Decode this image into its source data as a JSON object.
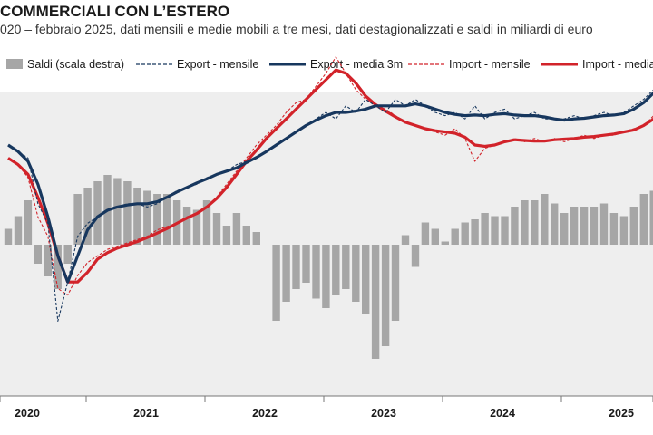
{
  "header": {
    "title": "COMMERCIALI CON L’ESTERO",
    "subtitle": "020 – febbraio 2025, dati mensili e medie mobili a tre mesi, dati destagionalizzati e saldi in miliardi di euro"
  },
  "colors": {
    "export": "#17375e",
    "import": "#d2232a",
    "saldi": "#a6a6a6",
    "plot_bg": "#eeeeee"
  },
  "chart_data": {
    "type": "line",
    "x_start": "2019-10",
    "x_ticks": [
      "2020",
      "2021",
      "2022",
      "2023",
      "2024",
      "2025"
    ],
    "legend": [
      "Saldi (scala destra)",
      "Export - mensile",
      "Export - media 3m",
      "Import - mensile",
      "Import - media"
    ],
    "legend_position": "top",
    "grid": false,
    "y_left_range": [
      25,
      70
    ],
    "y_right_range": [
      -20,
      15
    ],
    "saldi": [
      2.5,
      4.5,
      7,
      -3,
      -5,
      -7,
      -3,
      8,
      9,
      10,
      11,
      10.5,
      10,
      9,
      8.5,
      8,
      8,
      7,
      6,
      5.5,
      7,
      5,
      3,
      5,
      3,
      2,
      0,
      -12,
      -9,
      -7,
      -6,
      -8.5,
      -10,
      -8,
      -7,
      -9,
      -11,
      -18,
      -16,
      -12,
      1.5,
      -3.5,
      3.5,
      2.5,
      0.5,
      2.5,
      3.5,
      4,
      5,
      4.5,
      4.5,
      6,
      7,
      7,
      8,
      6.5,
      5,
      6,
      6,
      6,
      6.5,
      5,
      4.5,
      6,
      8,
      8.5
    ],
    "export_mensile": [
      55,
      54,
      53,
      46,
      43,
      28,
      34,
      41,
      43,
      44,
      45,
      45.5,
      46,
      46,
      45.5,
      46,
      47,
      48,
      48.5,
      49,
      50,
      50.5,
      51,
      52,
      52.5,
      53,
      54,
      55,
      56,
      57,
      58,
      59,
      60,
      59,
      61,
      60,
      62,
      61,
      60,
      62,
      61,
      62,
      61,
      60,
      59.5,
      60,
      59,
      61,
      59,
      60,
      60.5,
      59,
      59.5,
      60,
      59,
      59,
      59,
      59.5,
      59,
      59.5,
      60,
      59.5,
      60,
      61,
      62,
      63.5
    ],
    "export_media": [
      55,
      54,
      52.5,
      49,
      44,
      38,
      34,
      38,
      42,
      44,
      45,
      45.5,
      45.8,
      46,
      46,
      46.3,
      47,
      47.8,
      48.5,
      49.2,
      49.8,
      50.5,
      51,
      51.5,
      52.3,
      53.1,
      54,
      55,
      56,
      57,
      58,
      58.8,
      59.5,
      60,
      60,
      60.2,
      60.5,
      61,
      61,
      61,
      61,
      61.3,
      61,
      60.5,
      60,
      59.7,
      59.5,
      59.6,
      59.5,
      59.7,
      59.8,
      59.6,
      59.5,
      59.5,
      59.3,
      59,
      58.8,
      59,
      59.1,
      59.3,
      59.5,
      59.6,
      59.8,
      60.5,
      61.5,
      63
    ],
    "import_mensile": [
      53,
      52,
      50,
      44,
      41,
      33,
      32,
      35,
      37,
      38,
      39,
      39.5,
      40,
      40.5,
      41,
      42,
      42.5,
      43,
      44,
      44.5,
      45.5,
      47,
      49,
      51,
      53,
      55,
      56.5,
      58,
      60,
      61.5,
      62,
      64,
      66,
      68.5,
      66,
      63.5,
      62,
      61,
      60.5,
      59.5,
      58.5,
      58,
      57.5,
      57,
      56.5,
      57.5,
      56,
      52.5,
      54.5,
      55,
      55.5,
      56,
      55.5,
      56,
      55.5,
      56,
      55.5,
      56,
      56.5,
      56,
      56.5,
      56.5,
      57,
      57.5,
      58,
      59.5
    ],
    "import_media": [
      53,
      52,
      50.5,
      47,
      43,
      38,
      34,
      34,
      35.5,
      37.5,
      38.5,
      39.2,
      39.7,
      40.2,
      40.8,
      41.5,
      42.2,
      43,
      43.8,
      44.5,
      45.5,
      46.8,
      48.5,
      50.5,
      52.5,
      54.2,
      56,
      57.5,
      59,
      60.5,
      62,
      63.5,
      65,
      66.5,
      66,
      64.5,
      62.5,
      61.2,
      60.2,
      59.3,
      58.5,
      58,
      57.5,
      57.2,
      57,
      56.8,
      56.2,
      55,
      54.8,
      55,
      55.5,
      55.8,
      55.7,
      55.6,
      55.6,
      55.8,
      55.9,
      56,
      56.2,
      56.3,
      56.5,
      56.7,
      57,
      57.3,
      58,
      59
    ]
  }
}
